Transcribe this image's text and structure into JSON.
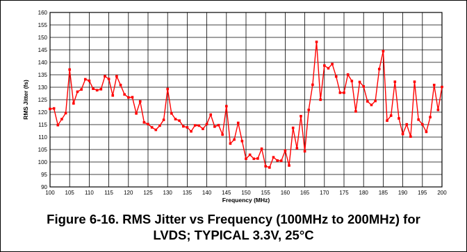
{
  "chart_data": {
    "type": "line",
    "title": "",
    "xlabel": "Frequency (MHz)",
    "ylabel": "RMS Jitter (fs)",
    "xlim": [
      100,
      200
    ],
    "ylim": [
      90,
      160
    ],
    "xticks": [
      100,
      105,
      110,
      115,
      120,
      125,
      130,
      135,
      140,
      145,
      150,
      155,
      160,
      165,
      170,
      175,
      180,
      185,
      190,
      195,
      200
    ],
    "yticks": [
      90,
      95,
      100,
      105,
      110,
      115,
      120,
      125,
      130,
      135,
      140,
      145,
      150,
      155,
      160
    ],
    "grid": true,
    "legend": "none",
    "series": [
      {
        "color": "#ff0000",
        "x": [
          100,
          101,
          102,
          103,
          104,
          105,
          106,
          107,
          108,
          109,
          110,
          111,
          112,
          113,
          114,
          115,
          116,
          117,
          118,
          119,
          120,
          121,
          122,
          123,
          124,
          125,
          126,
          127,
          128,
          129,
          130,
          131,
          132,
          133,
          134,
          135,
          136,
          137,
          138,
          139,
          140,
          141,
          142,
          143,
          144,
          145,
          146,
          147,
          148,
          149,
          150,
          151,
          152,
          153,
          154,
          155,
          156,
          157,
          158,
          159,
          160,
          161,
          162,
          163,
          164,
          165,
          166,
          167,
          168,
          169,
          170,
          171,
          172,
          173,
          174,
          175,
          176,
          177,
          178,
          179,
          180,
          181,
          182,
          183,
          184,
          185,
          186,
          187,
          188,
          189,
          190,
          191,
          192,
          193,
          194,
          195,
          196,
          197,
          198,
          199,
          200
        ],
        "y": [
          121.3,
          121.5,
          114.8,
          117.2,
          119.6,
          137.1,
          123.5,
          128.2,
          129.1,
          133.2,
          132.6,
          129.4,
          128.8,
          129.2,
          134.4,
          133.3,
          126.7,
          134.4,
          130.9,
          127.1,
          125.9,
          126.0,
          119.5,
          124.3,
          115.9,
          115.2,
          113.9,
          112.9,
          114.6,
          116.9,
          129.3,
          119.5,
          117.2,
          116.6,
          114.3,
          113.9,
          112.3,
          114.7,
          114.6,
          113.3,
          115.2,
          119.0,
          114.2,
          114.8,
          111.0,
          122.4,
          107.4,
          109.0,
          115.7,
          108.4,
          101.3,
          102.9,
          101.3,
          101.4,
          105.3,
          98.3,
          97.8,
          101.9,
          100.6,
          100.5,
          104.6,
          98.6,
          113.7,
          105.5,
          118.4,
          104.3,
          120.9,
          131.0,
          148.2,
          125.0,
          138.7,
          137.6,
          139.3,
          134.3,
          127.8,
          127.8,
          135.1,
          132.5,
          120.3,
          132.1,
          130.3,
          124.3,
          122.9,
          124.5,
          137.3,
          144.5,
          116.6,
          118.6,
          132.2,
          117.5,
          111.2,
          115.1,
          110.2,
          132.2,
          117.0,
          115.1,
          112.1,
          118.0,
          130.9,
          120.9,
          130.1
        ]
      }
    ]
  },
  "caption": {
    "line1": "Figure 6-16. RMS Jitter vs Frequency (100MHz to 200MHz) for",
    "line2": "LVDS; TYPICAL 3.3V, 25°C"
  }
}
